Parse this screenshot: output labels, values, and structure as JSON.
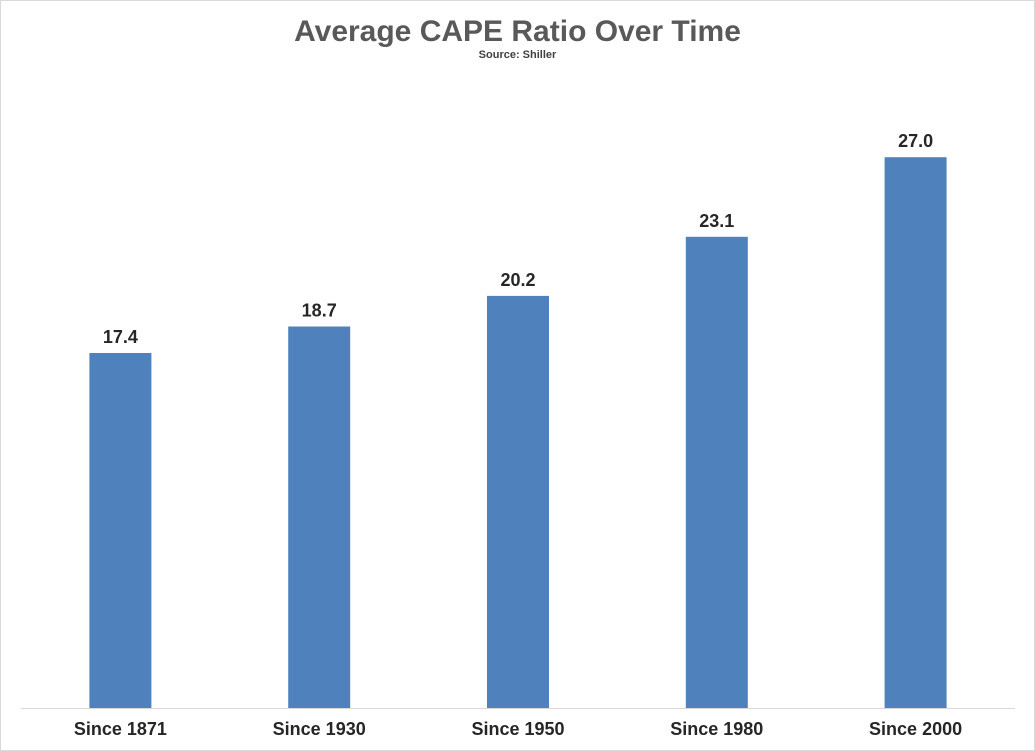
{
  "chart_data": {
    "type": "bar",
    "title": "Average CAPE Ratio Over Time",
    "subtitle": "Source: Shiller",
    "xlabel": "",
    "ylabel": "",
    "categories": [
      "Since 1871",
      "Since 1930",
      "Since 1950",
      "Since 1980",
      "Since 2000"
    ],
    "values": [
      17.4,
      18.7,
      20.2,
      23.1,
      27.0
    ],
    "value_labels": [
      "17.4",
      "18.7",
      "20.2",
      "23.1",
      "27.0"
    ],
    "ylim": [
      0,
      30
    ],
    "grid": false,
    "legend": "none",
    "bar_color": "#4f81bd",
    "axis_color": "#d9d9d9"
  }
}
